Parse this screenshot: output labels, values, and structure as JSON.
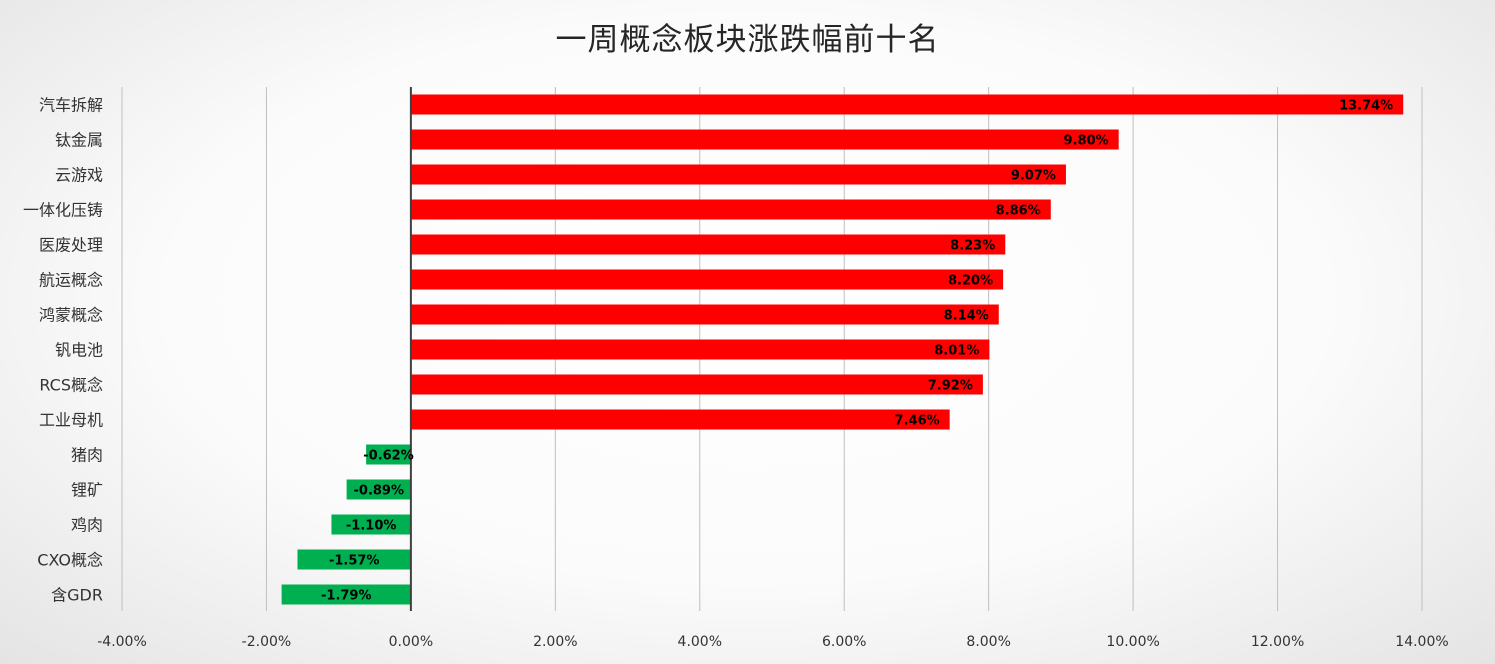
{
  "chart_data": {
    "type": "bar",
    "orientation": "horizontal",
    "title": "一周概念板块涨跌幅前十名",
    "xlabel": "",
    "ylabel": "",
    "xlim": [
      -0.04,
      0.14
    ],
    "grid": true,
    "legend": "none",
    "colors": {
      "positive": "#FF0000",
      "negative": "#00B050",
      "axis": "#404040",
      "grid": "#BFBFBF"
    },
    "x_ticks": [
      "-4.00%",
      "-2.00%",
      "0.00%",
      "2.00%",
      "4.00%",
      "6.00%",
      "8.00%",
      "10.00%",
      "12.00%",
      "14.00%"
    ],
    "categories": [
      "汽车拆解",
      "钛金属",
      "云游戏",
      "一体化压铸",
      "医废处理",
      "航运概念",
      "鸿蒙概念",
      "钒电池",
      "RCS概念",
      "工业母机",
      "猪肉",
      "锂矿",
      "鸡肉",
      "CXO概念",
      "含GDR"
    ],
    "values": [
      0.1374,
      0.098,
      0.0907,
      0.0886,
      0.0823,
      0.082,
      0.0814,
      0.0801,
      0.0792,
      0.0746,
      -0.0062,
      -0.0089,
      -0.011,
      -0.0157,
      -0.0179
    ],
    "data_labels": [
      "13.74%",
      "9.80%",
      "9.07%",
      "8.86%",
      "8.23%",
      "8.20%",
      "8.14%",
      "8.01%",
      "7.92%",
      "7.46%",
      "-0.62%",
      "-0.89%",
      "-1.10%",
      "-1.57%",
      "-1.79%"
    ]
  }
}
